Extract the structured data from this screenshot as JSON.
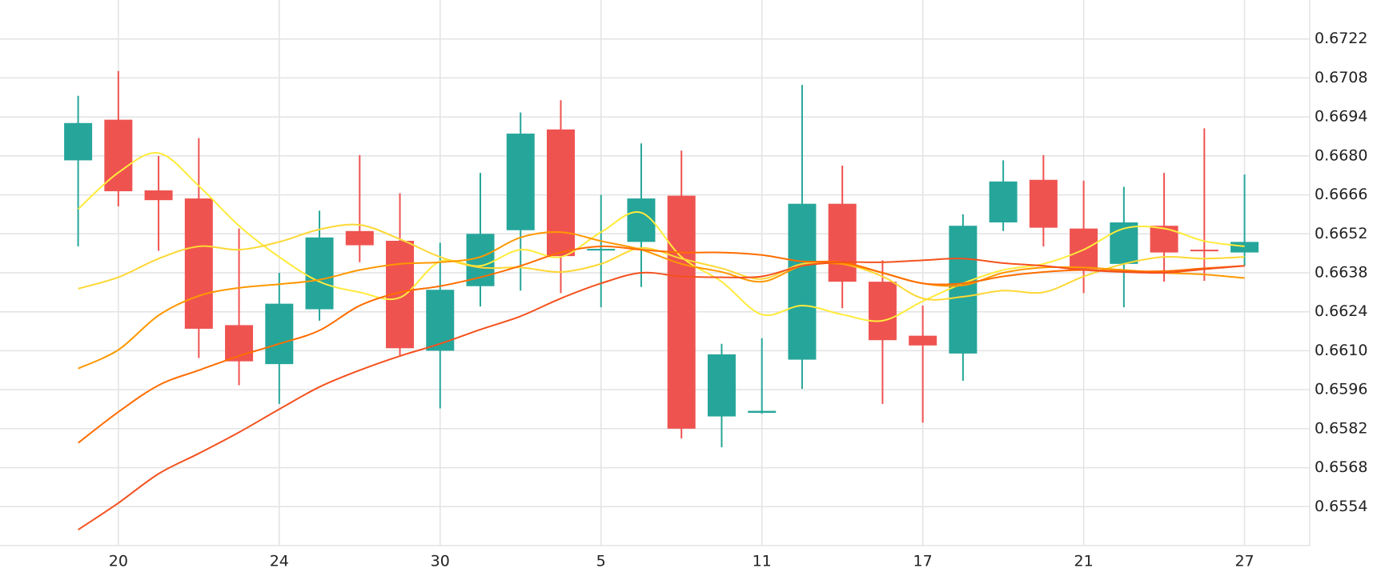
{
  "chart_data": {
    "type": "candlestick",
    "categories": [
      null,
      "20",
      null,
      null,
      null,
      "24",
      null,
      null,
      null,
      "30",
      null,
      null,
      null,
      "5",
      null,
      null,
      null,
      "11",
      null,
      null,
      null,
      "17",
      null,
      null,
      null,
      "21",
      null,
      null,
      null,
      "27"
    ],
    "open": [
      0.66784,
      0.6693,
      0.66676,
      0.66647,
      0.66192,
      0.66052,
      0.66249,
      0.6653,
      0.66495,
      0.661,
      0.66332,
      0.66533,
      0.66895,
      0.6646,
      0.66491,
      0.66657,
      0.65864,
      0.65877,
      0.66068,
      0.66628,
      0.66348,
      0.66154,
      0.6609,
      0.66561,
      0.66714,
      0.66539,
      0.66412,
      0.66549,
      0.66463,
      0.66453
    ],
    "high": [
      0.67016,
      0.67105,
      0.668,
      0.66864,
      0.66539,
      0.6638,
      0.66603,
      0.66803,
      0.66666,
      0.66488,
      0.66739,
      0.66956,
      0.67,
      0.6666,
      0.66845,
      0.66819,
      0.66125,
      0.66145,
      0.67055,
      0.66765,
      0.66425,
      0.66262,
      0.6659,
      0.66784,
      0.66803,
      0.66711,
      0.66689,
      0.66739,
      0.66899,
      0.66733
    ],
    "low": [
      0.66475,
      0.66619,
      0.66459,
      0.66074,
      0.65976,
      0.65909,
      0.66208,
      0.66418,
      0.66084,
      0.65893,
      0.66259,
      0.66316,
      0.66307,
      0.66256,
      0.66329,
      0.65785,
      0.65753,
      0.65874,
      0.65963,
      0.66253,
      0.65909,
      0.65842,
      0.65992,
      0.6653,
      0.66475,
      0.66307,
      0.66256,
      0.66348,
      0.66351,
      0.66405
    ],
    "close": [
      0.66918,
      0.66673,
      0.66641,
      0.66179,
      0.66062,
      0.66269,
      0.66507,
      0.66479,
      0.66109,
      0.66319,
      0.6652,
      0.6688,
      0.6644,
      0.66466,
      0.66647,
      0.6582,
      0.66087,
      0.65884,
      0.66628,
      0.66348,
      0.66138,
      0.66119,
      0.66549,
      0.66708,
      0.66542,
      0.66393,
      0.66561,
      0.66453,
      0.6646,
      0.66491
    ],
    "up_color": "#26a69a",
    "down_color": "#ef5350",
    "series": [
      {
        "color": "#ffeb3b",
        "values": [
          0.66609,
          0.6674,
          0.6681,
          0.66692,
          0.66549,
          0.66437,
          0.66348,
          0.6631,
          0.66291,
          0.66421,
          0.66405,
          0.66463,
          0.66437,
          0.66526,
          0.66596,
          0.66437,
          0.66348,
          0.6623,
          0.66262,
          0.6623,
          0.66208,
          0.66278,
          0.66342,
          0.6639,
          0.66412,
          0.66463,
          0.66539,
          0.66539,
          0.66494,
          0.66475
        ]
      },
      {
        "color": "#fdd835",
        "values": [
          0.66323,
          0.66364,
          0.66431,
          0.66475,
          0.66463,
          0.66491,
          0.66536,
          0.66552,
          0.66501,
          0.66437,
          0.66399,
          0.66399,
          0.66383,
          0.66412,
          0.66469,
          0.66431,
          0.66396,
          0.66358,
          0.66412,
          0.66412,
          0.66367,
          0.66288,
          0.66294,
          0.66316,
          0.6631,
          0.66367,
          0.66412,
          0.66437,
          0.66431,
          0.66437
        ]
      },
      {
        "color": "#ff9800",
        "values": [
          0.66036,
          0.66103,
          0.66227,
          0.66297,
          0.66326,
          0.66339,
          0.66355,
          0.6639,
          0.66412,
          0.66418,
          0.66437,
          0.66507,
          0.66526,
          0.66494,
          0.66463,
          0.66412,
          0.66383,
          0.66348,
          0.66405,
          0.66412,
          0.6638,
          0.66342,
          0.66335,
          0.6638,
          0.66399,
          0.66399,
          0.6639,
          0.6638,
          0.66374,
          0.66361
        ]
      },
      {
        "color": "#ff6d00",
        "values": [
          0.65769,
          0.6588,
          0.65976,
          0.6603,
          0.66081,
          0.66125,
          0.66173,
          0.66262,
          0.6631,
          0.66332,
          0.66364,
          0.66405,
          0.66453,
          0.66475,
          0.66463,
          0.66453,
          0.66453,
          0.66444,
          0.66421,
          0.66418,
          0.6638,
          0.66342,
          0.66342,
          0.66367,
          0.66383,
          0.6639,
          0.66386,
          0.66386,
          0.66396,
          0.66405
        ]
      },
      {
        "color": "#f4511e",
        "values": [
          0.65457,
          0.65553,
          0.65658,
          0.65731,
          0.65807,
          0.6589,
          0.6597,
          0.6603,
          0.66081,
          0.66125,
          0.66176,
          0.66224,
          0.66288,
          0.66342,
          0.6638,
          0.66367,
          0.66364,
          0.66367,
          0.66405,
          0.66418,
          0.66418,
          0.66425,
          0.66431,
          0.66415,
          0.66405,
          0.6639,
          0.66383,
          0.6638,
          0.66393,
          0.66405
        ]
      }
    ],
    "ylim": [
      0.654,
      0.6736
    ],
    "yticks": [
      0.6554,
      0.6568,
      0.6582,
      0.6596,
      {
        "value": 0.661,
        "label": "0.6610"
      },
      0.6624,
      0.6638,
      0.6652,
      0.6666,
      {
        "value": 0.668,
        "label": "0.6680"
      },
      0.6694,
      0.6708,
      0.6722
    ],
    "grid": true
  }
}
